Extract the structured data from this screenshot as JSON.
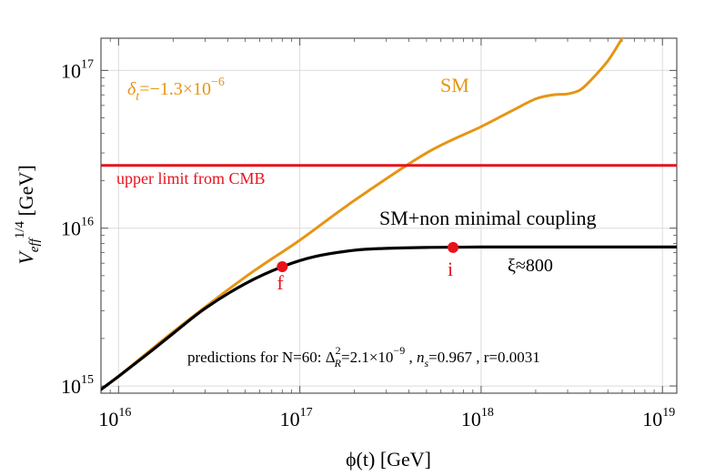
{
  "chart_data": {
    "type": "line",
    "title": "",
    "xlabel": "ϕ(t) [GeV]",
    "ylabel": "V_eff^1/4 [GeV]",
    "x_scale": "log",
    "y_scale": "log",
    "xlim": [
      8000000000000000.0,
      1.2e+19
    ],
    "ylim": [
      900000000000000.0,
      1.6e+17
    ],
    "x_ticks": [
      {
        "value": 1e+16,
        "base": "10",
        "exp": "16"
      },
      {
        "value": 1e+17,
        "base": "10",
        "exp": "17"
      },
      {
        "value": 1e+18,
        "base": "10",
        "exp": "18"
      },
      {
        "value": 1e+19,
        "base": "10",
        "exp": "19"
      }
    ],
    "y_ticks": [
      {
        "value": 1000000000000000.0,
        "base": "10",
        "exp": "15"
      },
      {
        "value": 1e+16,
        "base": "10",
        "exp": "16"
      },
      {
        "value": 1e+17,
        "base": "10",
        "exp": "17"
      }
    ],
    "grid": true,
    "series": [
      {
        "name": "SM",
        "color": "#e69514",
        "x": [
          8000000000000000.0,
          1e+16,
          2e+16,
          5e+16,
          1e+17,
          2e+17,
          5e+17,
          1e+18,
          1.5e+18,
          2e+18,
          2.5e+18,
          3e+18,
          3.5e+18,
          4e+18,
          5e+18,
          6e+18
        ],
        "y": [
          950000000000000.0,
          1150000000000000.0,
          2200000000000000.0,
          4900000000000000.0,
          8400000000000000.0,
          1.5e+16,
          3e+16,
          4.4e+16,
          5.6e+16,
          6.6e+16,
          7e+16,
          7.1e+16,
          7.5e+16,
          8.6e+16,
          1.15e+17,
          1.6e+17
        ]
      },
      {
        "name": "SM+non minimal coupling",
        "color": "#000000",
        "x": [
          8000000000000000.0,
          1e+16,
          1.5e+16,
          2e+16,
          3e+16,
          5e+16,
          8e+16,
          1.2e+17,
          2e+17,
          3e+17,
          5e+17,
          1e+18,
          3e+18,
          1.2e+19
        ],
        "y": [
          950000000000000.0,
          1150000000000000.0,
          1650000000000000.0,
          2150000000000000.0,
          3100000000000000.0,
          4450000000000000.0,
          5700000000000000.0,
          6600000000000000.0,
          7250000000000000.0,
          7450000000000000.0,
          7550000000000000.0,
          7600000000000000.0,
          7600000000000000.0,
          7600000000000000.0
        ]
      },
      {
        "name": "upper limit from CMB",
        "color": "#e8121c",
        "x": [
          8000000000000000.0,
          1.2e+19
        ],
        "y": [
          2.5e+16,
          2.5e+16
        ]
      }
    ],
    "points": [
      {
        "label": "f",
        "x": 8e+16,
        "y": 5700000000000000.0,
        "color": "#e8121c"
      },
      {
        "label": "i",
        "x": 7e+17,
        "y": 7550000000000000.0,
        "color": "#e8121c"
      }
    ],
    "annotations": {
      "delta_label": "δ",
      "delta_sub": "t",
      "delta_value": "=−1.3×10",
      "delta_exp": "−6",
      "sm_label": "SM",
      "cmb_label": "upper limit from CMB",
      "nmc_label": "SM+non minimal coupling",
      "xi_label": "ξ≈800",
      "predictions_prefix": "predictions for N=60: Δ",
      "predictions_delta_sub": "R",
      "predictions_delta_sup": "2",
      "predictions_value": "=2.1×10",
      "predictions_exp": "−9",
      "predictions_ns_symbol": "n",
      "predictions_ns_sub": "s",
      "predictions_ns_value": "=0.967",
      "predictions_r": "r=0.0031"
    },
    "ylabel_parts": {
      "main": "V",
      "sub": "eff",
      "sup": "1/4",
      "unit": " [GeV]"
    }
  }
}
